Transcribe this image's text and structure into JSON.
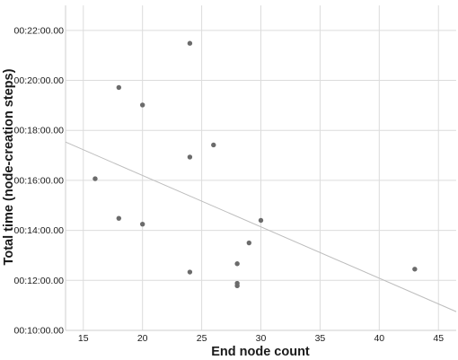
{
  "chart_data": {
    "type": "scatter",
    "title": "",
    "xlabel": "End node count",
    "ylabel": "Total time (node-creation steps)",
    "xlim": [
      13.5,
      46.5
    ],
    "ylim_seconds": [
      600,
      1380
    ],
    "x_ticks": [
      15,
      20,
      25,
      30,
      35,
      40,
      45
    ],
    "x_tick_labels": [
      "15",
      "20",
      "25",
      "30",
      "35",
      "40",
      "45"
    ],
    "y_ticks_seconds": [
      600,
      720,
      840,
      960,
      1080,
      1200,
      1320
    ],
    "y_tick_labels": [
      "00:10:00.00",
      "00:12:00.00",
      "00:14:00.00",
      "00:16:00.00",
      "00:18:00.00",
      "00:20:00.00",
      "00:22:00.00"
    ],
    "grid": true,
    "point_color": "#6b6b6b",
    "fit_line_color": "#bdbdbd",
    "points": [
      {
        "x": 16,
        "y_seconds": 964,
        "y": "00:16:04"
      },
      {
        "x": 18,
        "y_seconds": 1183,
        "y": "00:19:43"
      },
      {
        "x": 18,
        "y_seconds": 869,
        "y": "00:14:29"
      },
      {
        "x": 20,
        "y_seconds": 1141,
        "y": "00:19:01"
      },
      {
        "x": 20,
        "y_seconds": 855,
        "y": "00:14:15"
      },
      {
        "x": 24,
        "y_seconds": 1289,
        "y": "00:21:29"
      },
      {
        "x": 24,
        "y_seconds": 1016,
        "y": "00:16:56"
      },
      {
        "x": 24,
        "y_seconds": 740,
        "y": "00:12:20"
      },
      {
        "x": 26,
        "y_seconds": 1045,
        "y": "00:17:25"
      },
      {
        "x": 28,
        "y_seconds": 760,
        "y": "00:12:40"
      },
      {
        "x": 28,
        "y_seconds": 713,
        "y": "00:11:53"
      },
      {
        "x": 28,
        "y_seconds": 707,
        "y": "00:11:47"
      },
      {
        "x": 29,
        "y_seconds": 810,
        "y": "00:13:30"
      },
      {
        "x": 30,
        "y_seconds": 864,
        "y": "00:14:24"
      },
      {
        "x": 43,
        "y_seconds": 747,
        "y": "00:12:27"
      }
    ],
    "fit_line": {
      "x_start": 13.5,
      "y_start_seconds": 1052,
      "x_end": 46.5,
      "y_end_seconds": 645
    }
  }
}
